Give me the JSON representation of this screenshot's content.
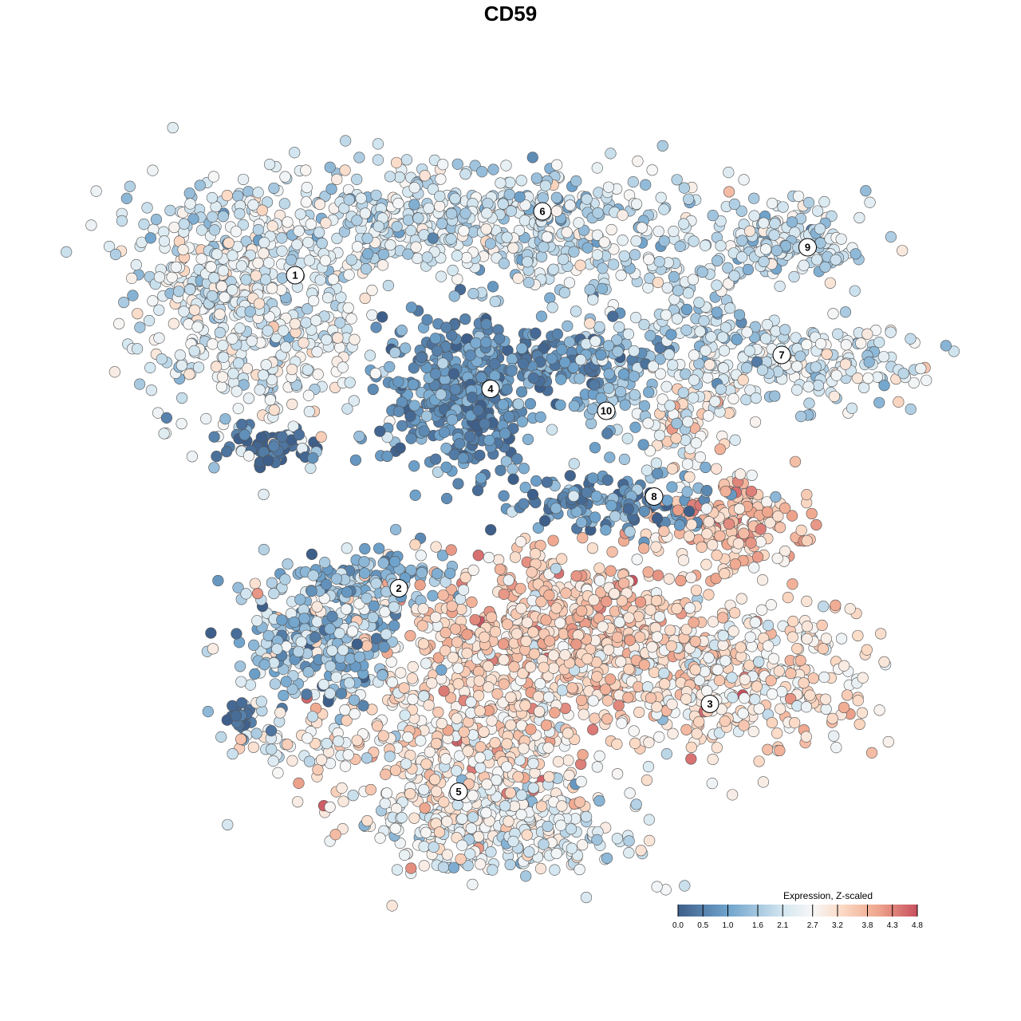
{
  "chart_data": {
    "type": "scatter",
    "title": "CD59",
    "xlabel": "",
    "ylabel": "",
    "xlim": [
      -12.8,
      12.8
    ],
    "ylim": [
      -12.8,
      12.8
    ],
    "grid": false,
    "point_generation": "clusters of points drawn from gaussian blobs (seeded); expression per point ~ mean ± sd",
    "blobs": [
      {
        "cluster": "1",
        "cx": -6.2,
        "cy": 4.8,
        "sx": 1.5,
        "sy": 1.6,
        "n": 420,
        "expr": 2.4,
        "esd": 0.45
      },
      {
        "cluster": "1",
        "cx": -7.6,
        "cy": 5.6,
        "sx": 0.9,
        "sy": 0.8,
        "n": 120,
        "expr": 2.2,
        "esd": 0.5
      },
      {
        "cluster": "1",
        "cx": -5.9,
        "cy": 1.6,
        "sx": 0.6,
        "sy": 0.25,
        "n": 60,
        "expr": 0.2,
        "esd": 0.3
      },
      {
        "cluster": "6",
        "cx": -1.6,
        "cy": 7.4,
        "sx": 3.6,
        "sy": 0.7,
        "n": 520,
        "expr": 2.1,
        "esd": 0.5
      },
      {
        "cluster": "6",
        "cx": 1.4,
        "cy": 6.4,
        "sx": 1.6,
        "sy": 0.6,
        "n": 120,
        "expr": 2.0,
        "esd": 0.55
      },
      {
        "cluster": "4",
        "cx": -1.2,
        "cy": 3.0,
        "sx": 1.0,
        "sy": 1.0,
        "n": 420,
        "expr": 0.7,
        "esd": 0.4
      },
      {
        "cluster": "4",
        "cx": 1.3,
        "cy": 3.8,
        "sx": 1.2,
        "sy": 0.3,
        "n": 90,
        "expr": 0.6,
        "esd": 0.45
      },
      {
        "cluster": "9",
        "cx": 6.9,
        "cy": 6.6,
        "sx": 1.1,
        "sy": 0.5,
        "n": 160,
        "expr": 2.0,
        "esd": 0.5
      },
      {
        "cluster": "7",
        "cx": 6.8,
        "cy": 3.7,
        "sx": 1.8,
        "sy": 0.5,
        "n": 230,
        "expr": 2.2,
        "esd": 0.5
      },
      {
        "cluster": "7",
        "cx": 4.8,
        "cy": 4.9,
        "sx": 0.8,
        "sy": 0.7,
        "n": 90,
        "expr": 1.8,
        "esd": 0.5
      },
      {
        "cluster": "10",
        "cx": 2.5,
        "cy": 3.3,
        "sx": 0.6,
        "sy": 0.8,
        "n": 110,
        "expr": 1.4,
        "esd": 0.5
      },
      {
        "cluster": "8",
        "cx": 5.8,
        "cy": -0.3,
        "sx": 0.9,
        "sy": 0.5,
        "n": 170,
        "expr": 3.5,
        "esd": 0.5
      },
      {
        "cluster": "8",
        "cx": 4.4,
        "cy": 2.0,
        "sx": 0.6,
        "sy": 0.8,
        "n": 90,
        "expr": 2.6,
        "esd": 0.7
      },
      {
        "cluster": "8",
        "cx": 2.4,
        "cy": 0.2,
        "sx": 1.3,
        "sy": 0.4,
        "n": 140,
        "expr": 0.7,
        "esd": 0.5
      },
      {
        "cluster": "2",
        "cx": -4.8,
        "cy": -3.2,
        "sx": 1.0,
        "sy": 0.9,
        "n": 280,
        "expr": 1.6,
        "esd": 0.7
      },
      {
        "cluster": "2",
        "cx": -3.6,
        "cy": -1.8,
        "sx": 1.0,
        "sy": 0.4,
        "n": 110,
        "expr": 1.3,
        "esd": 0.5
      },
      {
        "cluster": "3",
        "cx": 1.2,
        "cy": -3.0,
        "sx": 2.2,
        "sy": 1.0,
        "n": 650,
        "expr": 3.4,
        "esd": 0.5
      },
      {
        "cluster": "3",
        "cx": 5.2,
        "cy": -4.2,
        "sx": 2.0,
        "sy": 1.0,
        "n": 420,
        "expr": 3.0,
        "esd": 0.55
      },
      {
        "cluster": "5",
        "cx": -1.2,
        "cy": -6.0,
        "sx": 1.8,
        "sy": 1.2,
        "n": 480,
        "expr": 3.0,
        "esd": 0.5
      },
      {
        "cluster": "5",
        "cx": 0.0,
        "cy": -8.0,
        "sx": 1.6,
        "sy": 0.6,
        "n": 260,
        "expr": 2.4,
        "esd": 0.5
      },
      {
        "cluster": "",
        "cx": -5.6,
        "cy": -5.8,
        "sx": 0.8,
        "sy": 0.35,
        "n": 40,
        "expr": 2.4,
        "esd": 0.6
      },
      {
        "cluster": "",
        "cx": -6.7,
        "cy": -5.3,
        "sx": 0.3,
        "sy": 0.25,
        "n": 20,
        "expr": 0.2,
        "esd": 0.2
      }
    ],
    "cluster_labels": [
      {
        "label": "1",
        "x": -5.4,
        "y": 5.9
      },
      {
        "label": "6",
        "x": 0.8,
        "y": 7.5
      },
      {
        "label": "9",
        "x": 7.45,
        "y": 6.6
      },
      {
        "label": "4",
        "x": -0.5,
        "y": 3.05
      },
      {
        "label": "7",
        "x": 6.8,
        "y": 3.9
      },
      {
        "label": "10",
        "x": 2.4,
        "y": 2.5
      },
      {
        "label": "8",
        "x": 3.6,
        "y": 0.35
      },
      {
        "label": "2",
        "x": -2.8,
        "y": -1.95
      },
      {
        "label": "3",
        "x": 5.0,
        "y": -4.85
      },
      {
        "label": "5",
        "x": -1.3,
        "y": -7.05
      }
    ],
    "legend": {
      "title": "Expression, Z-scaled",
      "placement": "bottom-right",
      "ticks": [
        "0.0",
        "0.5",
        "1.0",
        "1.6",
        "2.1",
        "2.7",
        "3.2",
        "3.8",
        "4.3",
        "4.8"
      ],
      "range": [
        0.0,
        4.8
      ],
      "colors": [
        {
          "v": 0.0,
          "c": "#3e5f8a"
        },
        {
          "v": 1.0,
          "c": "#6fa3cc"
        },
        {
          "v": 2.1,
          "c": "#d3e6f0"
        },
        {
          "v": 2.7,
          "c": "#f7f7f7"
        },
        {
          "v": 3.3,
          "c": "#fbd9c4"
        },
        {
          "v": 4.0,
          "c": "#efa78e"
        },
        {
          "v": 4.8,
          "c": "#c8505f"
        }
      ]
    }
  }
}
